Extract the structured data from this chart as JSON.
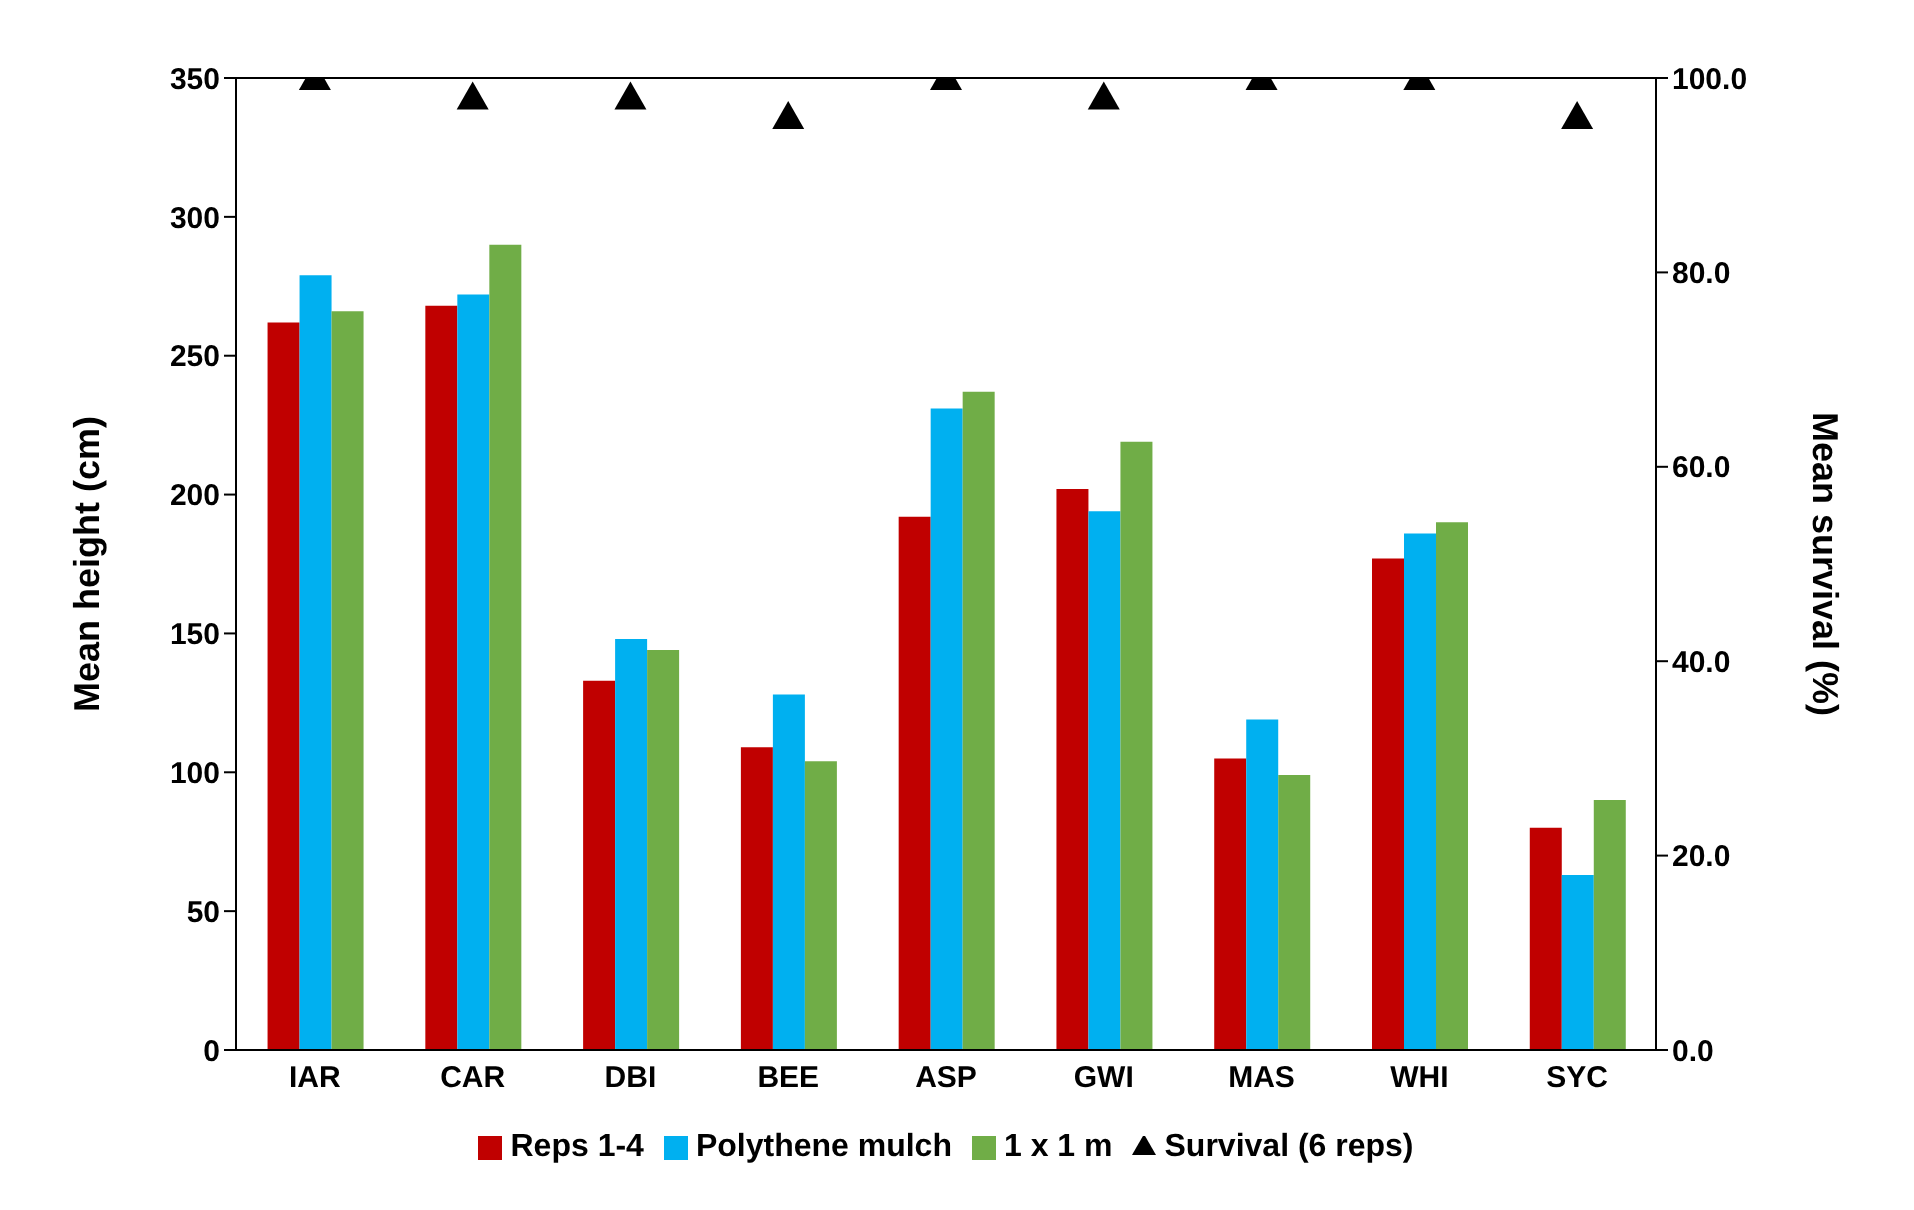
{
  "chart_data": {
    "type": "bar",
    "ylabel": "Mean height (cm)",
    "y2label": "Mean survival (%)",
    "categories": [
      "IAR",
      "CAR",
      "DBI",
      "BEE",
      "ASP",
      "GWI",
      "MAS",
      "WHI",
      "SYC"
    ],
    "series": [
      {
        "name": "Reps 1-4",
        "color": "#c00000",
        "values": [
          262,
          268,
          133,
          109,
          192,
          202,
          105,
          177,
          80
        ]
      },
      {
        "name": "Polythene mulch",
        "color": "#00b0f0",
        "values": [
          279,
          272,
          148,
          128,
          231,
          194,
          119,
          186,
          63
        ]
      },
      {
        "name": "1 x 1 m",
        "color": "#70ad47",
        "values": [
          266,
          290,
          144,
          104,
          237,
          219,
          99,
          190,
          90
        ]
      },
      {
        "name": "Survival (6 reps)",
        "type": "scatter",
        "axis": "y2",
        "marker": "triangle",
        "color": "#000000",
        "values": [
          100,
          98,
          98,
          96,
          100,
          98,
          100,
          100,
          96
        ]
      }
    ],
    "ylim": [
      0,
      350
    ],
    "yticks": [
      0,
      50,
      100,
      150,
      200,
      250,
      300,
      350
    ],
    "y2lim": [
      0,
      100
    ],
    "y2ticks": [
      {
        "value": 0,
        "label": "0.0"
      },
      {
        "value": 20,
        "label": "20.0"
      },
      {
        "value": 40,
        "label": "40.0"
      },
      {
        "value": 60,
        "label": "60.0"
      },
      {
        "value": 80,
        "label": "80.0"
      },
      {
        "value": 100,
        "label": "100.0"
      }
    ],
    "grid": false,
    "legend": "bottom"
  }
}
